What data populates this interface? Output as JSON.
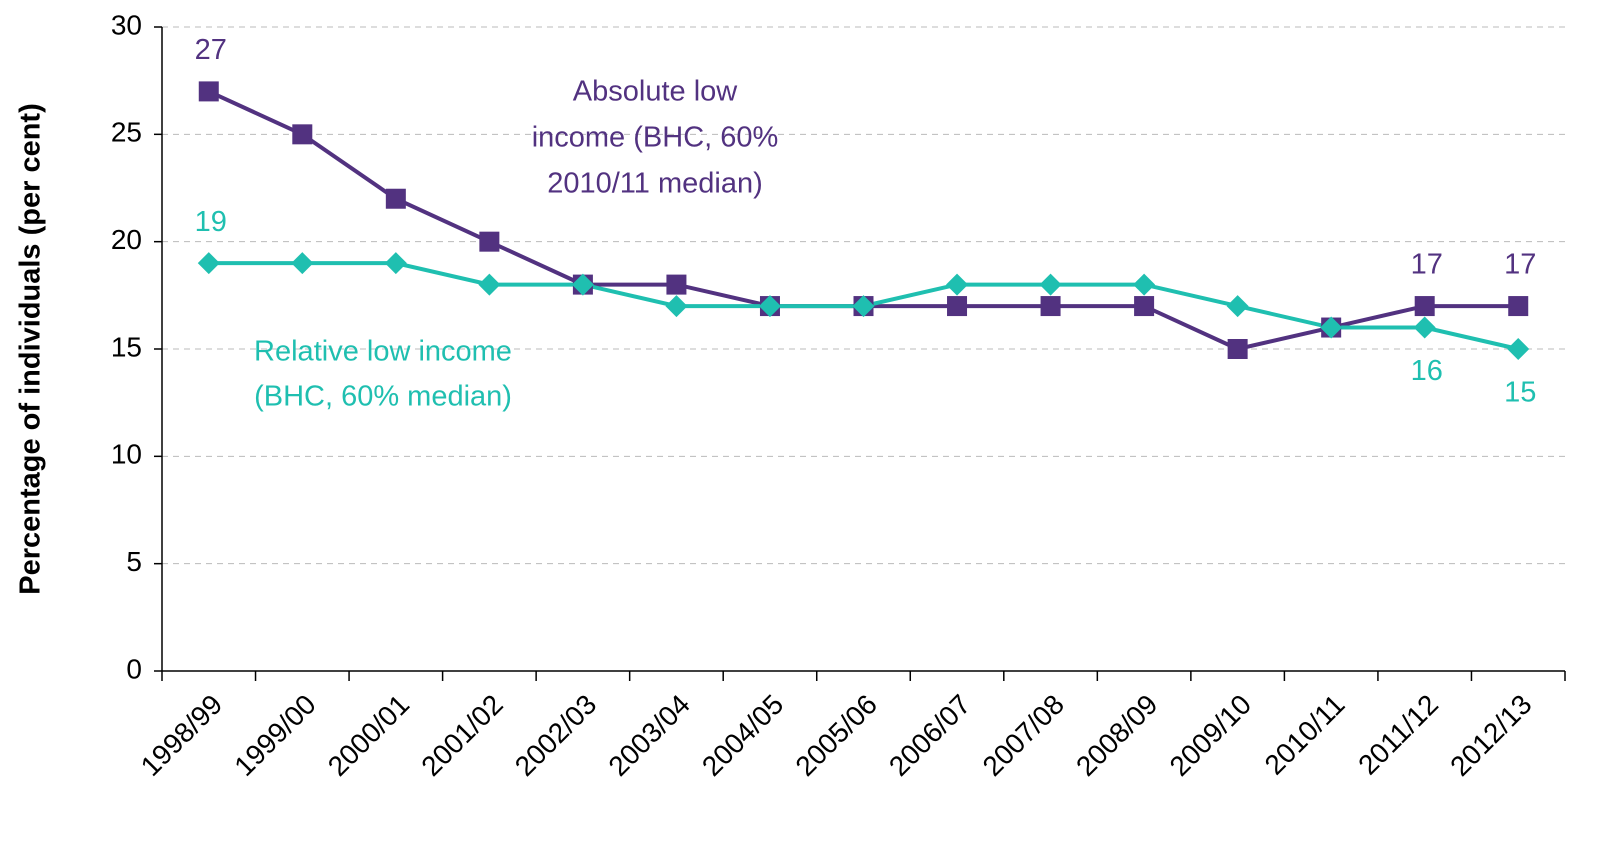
{
  "chart_data": {
    "type": "line",
    "ylabel": "Percentage of individuals (per cent)",
    "categories": [
      "1998/99",
      "1999/00",
      "2000/01",
      "2001/02",
      "2002/03",
      "2003/04",
      "2004/05",
      "2005/06",
      "2006/07",
      "2007/08",
      "2008/09",
      "2009/10",
      "2010/11",
      "2011/12",
      "2012/13"
    ],
    "series": [
      {
        "name": [
          "Absolute low",
          "income (BHC, 60%",
          "2010/11 median)"
        ],
        "color": "#523280",
        "marker": "square",
        "values": [
          27,
          25,
          22,
          20,
          18,
          18,
          17,
          17,
          17,
          17,
          17,
          15,
          16,
          17,
          17
        ],
        "value_labels": [
          "27",
          null,
          null,
          null,
          null,
          null,
          null,
          null,
          null,
          null,
          null,
          null,
          null,
          "17",
          "17"
        ]
      },
      {
        "name": [
          "Relative low income",
          "(BHC, 60% median)"
        ],
        "color": "#1fbfb0",
        "marker": "diamond",
        "values": [
          19,
          19,
          19,
          18,
          18,
          17,
          17,
          17,
          18,
          18,
          18,
          17,
          16,
          16,
          15
        ],
        "value_labels": [
          "19",
          null,
          null,
          null,
          null,
          null,
          null,
          null,
          null,
          null,
          null,
          null,
          null,
          "16",
          "15"
        ]
      }
    ],
    "ylim": [
      0,
      30
    ],
    "yticks": [
      0,
      5,
      10,
      15,
      20,
      25,
      30
    ],
    "grid": true
  }
}
